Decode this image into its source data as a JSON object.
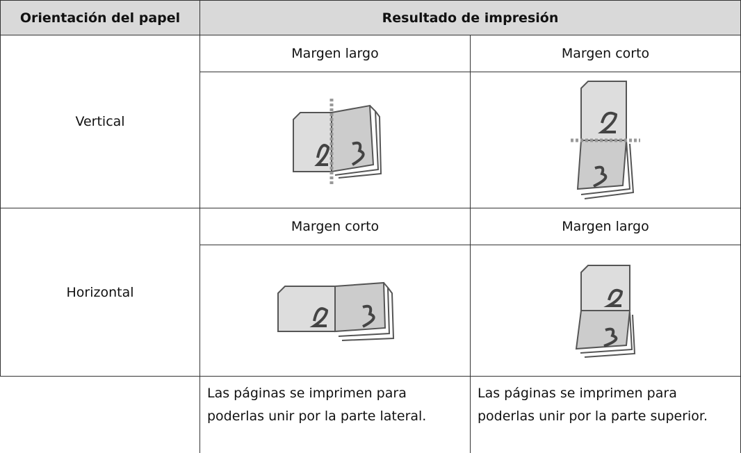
{
  "table": {
    "header": [
      "Orientación del papel",
      "Resultado de impresión"
    ],
    "rows": [
      {
        "orientation": "Vertical",
        "bindings": [
          "Margen largo",
          "Margen corto"
        ]
      },
      {
        "orientation": "Horizontal",
        "bindings": [
          "Margen corto",
          "Margen largo"
        ]
      }
    ],
    "notes": [
      "Las páginas se imprimen para poderlas unir por la parte lateral.",
      "Las páginas se imprimen para poderlas unir por la parte superior."
    ]
  }
}
